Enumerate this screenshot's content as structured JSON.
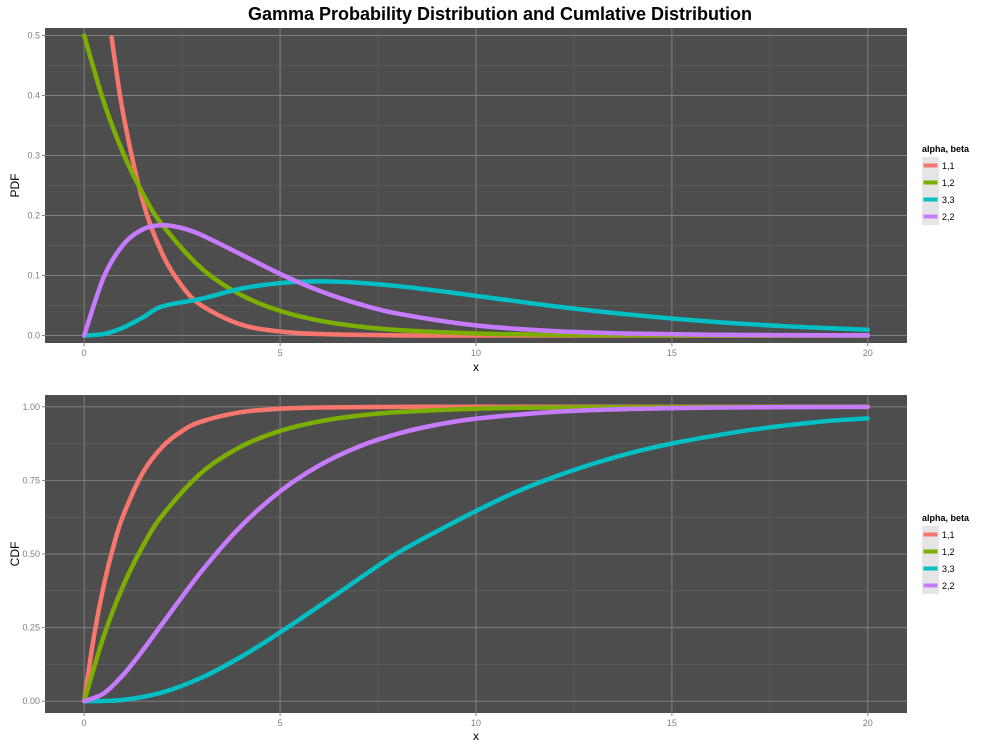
{
  "title": "Gamma Probability Distribution and Cumlative Distribution",
  "colors": {
    "panel_bg": "#4d4d4d",
    "grid_major": "#7f7f7f",
    "grid_minor": "#5f5f5f",
    "legend_key_bg": "#e5e5e5"
  },
  "chart_data": [
    {
      "type": "line",
      "ylabel": "PDF",
      "xlabel": "x",
      "xlim": [
        0,
        20
      ],
      "ylim": [
        0,
        0.5
      ],
      "x_ticks": [
        0,
        5,
        10,
        15,
        20
      ],
      "y_ticks": [
        0.0,
        0.1,
        0.2,
        0.3,
        0.4,
        0.5
      ],
      "x_tick_labels": [
        "0",
        "5",
        "10",
        "15",
        "20"
      ],
      "y_tick_labels": [
        "0.0",
        "0.1",
        "0.2",
        "0.3",
        "0.4",
        "0.5"
      ],
      "grid": true,
      "legend_title": "alpha, beta",
      "legend_position": "right",
      "series": [
        {
          "name": "1,1",
          "color": "#f8766d",
          "x": [
            0.7,
            1,
            1.5,
            2,
            2.5,
            3,
            4,
            5,
            6,
            8,
            10,
            15,
            20
          ],
          "y": [
            0.4966,
            0.3679,
            0.2231,
            0.1353,
            0.0821,
            0.0498,
            0.0183,
            0.0067,
            0.0025,
            0.0003,
            0.0,
            0.0,
            0.0
          ]
        },
        {
          "name": "1,2",
          "color": "#7cae00",
          "x": [
            0,
            0.5,
            1,
            1.5,
            2,
            3,
            4,
            5,
            6,
            7,
            8,
            10,
            12,
            15,
            20
          ],
          "y": [
            0.5,
            0.3894,
            0.3033,
            0.2362,
            0.1839,
            0.1116,
            0.0677,
            0.041,
            0.0249,
            0.0151,
            0.0092,
            0.0034,
            0.0012,
            0.0003,
            0.0
          ]
        },
        {
          "name": "3,3",
          "color": "#00bfc4",
          "x": [
            0,
            0.5,
            1,
            1.5,
            2,
            3,
            4,
            5,
            6,
            7,
            8,
            9,
            10,
            12,
            14,
            16,
            18,
            20
          ],
          "y": [
            0.0,
            0.0026,
            0.0133,
            0.0303,
            0.0487,
            0.0613,
            0.0781,
            0.0874,
            0.0902,
            0.088,
            0.0824,
            0.0747,
            0.0661,
            0.0488,
            0.0343,
            0.0231,
            0.0151,
            0.0095
          ]
        },
        {
          "name": "2,2",
          "color": "#c77cff",
          "x": [
            0,
            0.5,
            1,
            1.5,
            2,
            2.5,
            3,
            4,
            5,
            6,
            7,
            8,
            10,
            12,
            14,
            16,
            18,
            20
          ],
          "y": [
            0.0,
            0.0973,
            0.1516,
            0.1771,
            0.1839,
            0.179,
            0.1673,
            0.1353,
            0.1026,
            0.0747,
            0.0528,
            0.0366,
            0.0168,
            0.0074,
            0.0032,
            0.0013,
            0.0006,
            0.0002
          ]
        }
      ]
    },
    {
      "type": "line",
      "ylabel": "CDF",
      "xlabel": "x",
      "xlim": [
        0,
        20
      ],
      "ylim": [
        0,
        1
      ],
      "x_ticks": [
        0,
        5,
        10,
        15,
        20
      ],
      "y_ticks": [
        0.0,
        0.25,
        0.5,
        0.75,
        1.0
      ],
      "x_tick_labels": [
        "0",
        "5",
        "10",
        "15",
        "20"
      ],
      "y_tick_labels": [
        "0.00",
        "0.25",
        "0.50",
        "0.75",
        "1.00"
      ],
      "grid": true,
      "legend_title": "alpha, beta",
      "legend_position": "right",
      "series": [
        {
          "name": "1,1",
          "color": "#f8766d",
          "x": [
            0,
            0.25,
            0.5,
            0.75,
            1,
            1.5,
            2,
            2.5,
            3,
            4,
            5,
            6,
            8,
            10,
            15,
            20
          ],
          "y": [
            0.0,
            0.2212,
            0.3935,
            0.5276,
            0.6321,
            0.7769,
            0.8647,
            0.9179,
            0.9502,
            0.9817,
            0.9933,
            0.9975,
            0.9997,
            1.0,
            1.0,
            1.0
          ]
        },
        {
          "name": "1,2",
          "color": "#7cae00",
          "x": [
            0,
            0.5,
            1,
            1.5,
            2,
            3,
            4,
            5,
            6,
            7,
            8,
            10,
            12,
            15,
            20
          ],
          "y": [
            0.0,
            0.2212,
            0.3935,
            0.5276,
            0.6321,
            0.7769,
            0.8647,
            0.9179,
            0.9502,
            0.9698,
            0.9817,
            0.9933,
            0.9975,
            0.9994,
            1.0
          ]
        },
        {
          "name": "3,3",
          "color": "#00bfc4",
          "x": [
            0,
            1,
            2,
            3,
            4,
            5,
            6,
            7,
            8,
            9,
            10,
            11,
            12,
            13,
            14,
            15,
            16,
            17,
            18,
            19,
            20
          ],
          "y": [
            0.0,
            0.0047,
            0.0302,
            0.0803,
            0.1506,
            0.2337,
            0.3233,
            0.4145,
            0.5037,
            0.5768,
            0.6461,
            0.7093,
            0.7619,
            0.8069,
            0.8451,
            0.8753,
            0.8997,
            0.9214,
            0.938,
            0.9521,
            0.9606
          ]
        },
        {
          "name": "2,2",
          "color": "#c77cff",
          "x": [
            0,
            0.5,
            1,
            1.5,
            2,
            3,
            4,
            5,
            6,
            7,
            8,
            9,
            10,
            12,
            14,
            16,
            18,
            20
          ],
          "y": [
            0.0,
            0.0265,
            0.0902,
            0.1734,
            0.2642,
            0.4422,
            0.594,
            0.7127,
            0.8009,
            0.8641,
            0.9084,
            0.9389,
            0.9596,
            0.9826,
            0.9927,
            0.997,
            0.9988,
            0.9995
          ]
        }
      ]
    }
  ]
}
